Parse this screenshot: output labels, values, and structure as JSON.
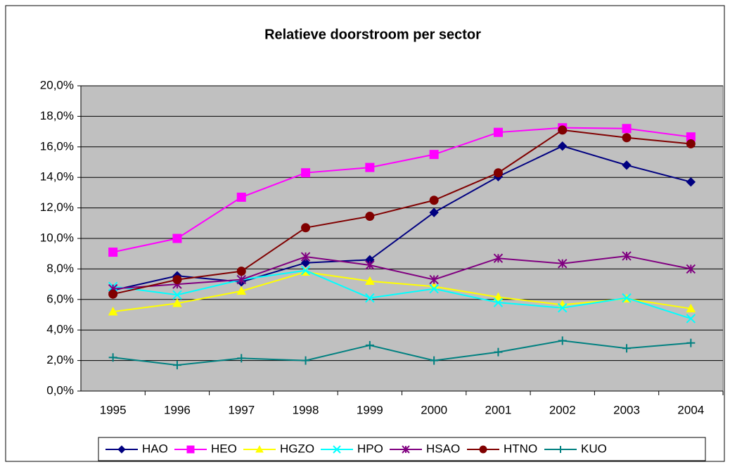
{
  "chart_data": {
    "type": "line",
    "title": "Relatieve doorstroom per sector",
    "categories": [
      "1995",
      "1996",
      "1997",
      "1998",
      "1999",
      "2000",
      "2001",
      "2002",
      "2003",
      "2004"
    ],
    "ylim": [
      0,
      20
    ],
    "yticks": [
      {
        "value": 0,
        "label": "0,0%"
      },
      {
        "value": 2,
        "label": "2,0%"
      },
      {
        "value": 4,
        "label": "4,0%"
      },
      {
        "value": 6,
        "label": "6,0%"
      },
      {
        "value": 8,
        "label": "8,0%"
      },
      {
        "value": 10,
        "label": "10,0%"
      },
      {
        "value": 12,
        "label": "12,0%"
      },
      {
        "value": 14,
        "label": "14,0%"
      },
      {
        "value": 16,
        "label": "16,0%"
      },
      {
        "value": 18,
        "label": "18,0%"
      },
      {
        "value": 20,
        "label": "20,0%"
      }
    ],
    "grid": true,
    "legend": "bottom",
    "series": [
      {
        "name": "HAO",
        "color": "#000080",
        "marker": "diamond",
        "values": [
          6.6,
          7.55,
          7.15,
          8.4,
          8.6,
          11.7,
          14.05,
          16.05,
          14.8,
          13.7
        ]
      },
      {
        "name": "HEO",
        "color": "#FF00FF",
        "marker": "square",
        "values": [
          9.1,
          10.0,
          12.7,
          14.3,
          14.65,
          15.5,
          16.95,
          17.25,
          17.2,
          16.65
        ]
      },
      {
        "name": "HGZO",
        "color": "#FFFF00",
        "marker": "triangle",
        "values": [
          5.2,
          5.75,
          6.55,
          7.8,
          7.2,
          6.85,
          6.15,
          5.65,
          6.05,
          5.4
        ]
      },
      {
        "name": "HPO",
        "color": "#00FFFF",
        "marker": "x",
        "values": [
          6.85,
          6.3,
          7.3,
          7.9,
          6.1,
          6.7,
          5.8,
          5.45,
          6.1,
          4.75
        ]
      },
      {
        "name": "HSAO",
        "color": "#800080",
        "marker": "asterisk",
        "values": [
          6.7,
          7.0,
          7.3,
          8.8,
          8.25,
          7.3,
          8.7,
          8.35,
          8.85,
          8.0
        ]
      },
      {
        "name": "HTNO",
        "color": "#800000",
        "marker": "circle",
        "values": [
          6.35,
          7.3,
          7.85,
          10.7,
          11.45,
          12.5,
          14.3,
          17.1,
          16.6,
          16.2
        ]
      },
      {
        "name": "KUO",
        "color": "#008080",
        "marker": "plus",
        "values": [
          2.2,
          1.7,
          2.15,
          2.0,
          3.0,
          2.0,
          2.55,
          3.3,
          2.8,
          3.15
        ]
      }
    ]
  }
}
